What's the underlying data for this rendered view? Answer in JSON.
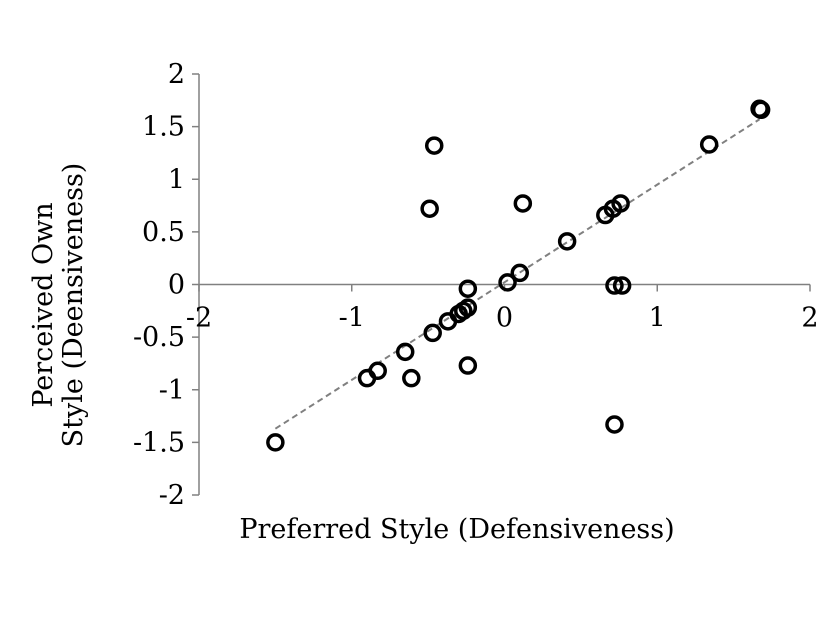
{
  "chart_data": {
    "type": "scatter",
    "title": "",
    "xlabel": "Preferred Style (Defensiveness)",
    "ylabel_lines": [
      "Perceived Own",
      "Style (Deensiveness)"
    ],
    "xlim": [
      -2,
      2
    ],
    "ylim": [
      -2,
      2
    ],
    "x_ticks": [
      -2,
      -1,
      0,
      1,
      2
    ],
    "y_ticks": [
      -2,
      -1.5,
      -1,
      -0.5,
      0,
      0.5,
      1,
      1.5,
      2
    ],
    "x_tick_labels": [
      "-2",
      "-1",
      "0",
      "1",
      "2"
    ],
    "y_tick_labels": [
      "-2",
      "-1.5",
      "-1",
      "-0.5",
      "0",
      "0.5",
      "1",
      "1.5",
      "2"
    ],
    "grid": false,
    "legend": "none",
    "marker": "open-circle",
    "trendline": {
      "style": "dashed",
      "color": "#808080",
      "x": [
        -1.5,
        1.67
      ],
      "y": [
        -1.37,
        1.57
      ]
    },
    "series": [
      {
        "points": [
          {
            "x": -1.5,
            "y": -1.5
          },
          {
            "x": -0.9,
            "y": -0.89
          },
          {
            "x": -0.83,
            "y": -0.82
          },
          {
            "x": -0.65,
            "y": -0.64
          },
          {
            "x": -0.61,
            "y": -0.89
          },
          {
            "x": -0.47,
            "y": -0.46
          },
          {
            "x": -0.49,
            "y": 0.72
          },
          {
            "x": -0.46,
            "y": 1.32
          },
          {
            "x": -0.37,
            "y": -0.35
          },
          {
            "x": -0.3,
            "y": -0.28
          },
          {
            "x": -0.27,
            "y": -0.25
          },
          {
            "x": -0.24,
            "y": -0.22
          },
          {
            "x": -0.24,
            "y": -0.04
          },
          {
            "x": -0.24,
            "y": -0.77
          },
          {
            "x": 0.02,
            "y": 0.02
          },
          {
            "x": 0.1,
            "y": 0.11
          },
          {
            "x": 0.12,
            "y": 0.77
          },
          {
            "x": 0.41,
            "y": 0.41
          },
          {
            "x": 0.66,
            "y": 0.66
          },
          {
            "x": 0.71,
            "y": 0.72
          },
          {
            "x": 0.76,
            "y": 0.77
          },
          {
            "x": 0.72,
            "y": -0.01
          },
          {
            "x": 0.77,
            "y": -0.01
          },
          {
            "x": 0.72,
            "y": -1.33
          },
          {
            "x": 1.34,
            "y": 1.33
          },
          {
            "x": 1.67,
            "y": 1.67
          },
          {
            "x": 1.68,
            "y": 1.66
          }
        ]
      }
    ],
    "colors": {
      "axis": "#808080",
      "marker": "#000000",
      "trendline": "#808080"
    }
  }
}
